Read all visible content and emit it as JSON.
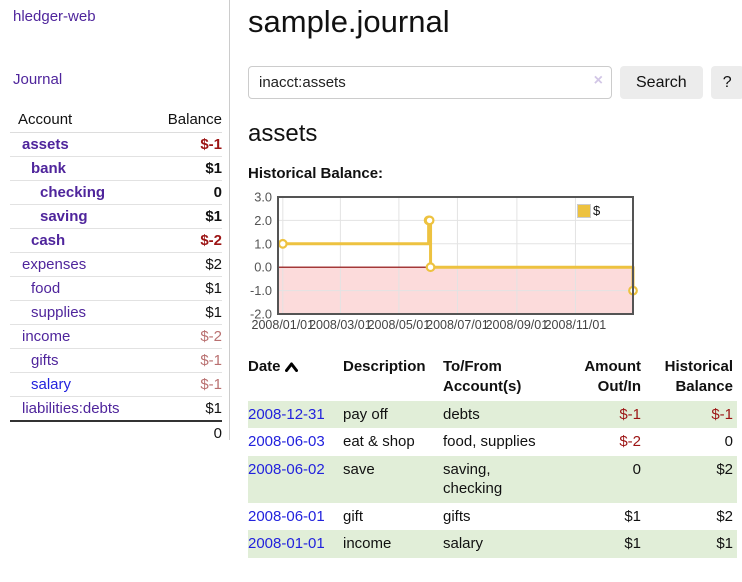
{
  "app": {
    "brand": "hledger-web",
    "nav_journal": "Journal"
  },
  "sidebar": {
    "headers": {
      "account": "Account",
      "balance": "Balance"
    },
    "accounts": [
      {
        "name": "assets",
        "balance": "$-1"
      },
      {
        "name": "bank",
        "balance": "$1"
      },
      {
        "name": "checking",
        "balance": "0"
      },
      {
        "name": "saving",
        "balance": "$1"
      },
      {
        "name": "cash",
        "balance": "$-2"
      },
      {
        "name": "expenses",
        "balance": "$2"
      },
      {
        "name": "food",
        "balance": "$1"
      },
      {
        "name": "supplies",
        "balance": "$1"
      },
      {
        "name": "income",
        "balance": "$-2"
      },
      {
        "name": "gifts",
        "balance": "$-1"
      },
      {
        "name": "salary",
        "balance": "$-1"
      },
      {
        "name": "liabilities:debts",
        "balance": "$1"
      }
    ],
    "total": "0"
  },
  "header": {
    "title": "sample.journal"
  },
  "search": {
    "value": "inacct:assets",
    "clear": "×",
    "search_button": "Search",
    "help_button": "?"
  },
  "account_page": {
    "title": "assets",
    "chart_title": "Historical Balance:"
  },
  "chart_data": {
    "type": "line",
    "title": "Historical Balance:",
    "series": [
      {
        "name": "$",
        "color": "#edc240",
        "steps": true,
        "points": [
          [
            "2008-01-01",
            1
          ],
          [
            "2008-06-01",
            2
          ],
          [
            "2008-06-02",
            2
          ],
          [
            "2008-06-03",
            0
          ],
          [
            "2008-12-31",
            -1
          ]
        ]
      }
    ],
    "ylim": [
      -2,
      3
    ],
    "xlim": [
      "2007-12-27",
      "2008-12-31"
    ],
    "yticks": [
      {
        "v": 3,
        "label": "3.0"
      },
      {
        "v": 2,
        "label": "2.0"
      },
      {
        "v": 1,
        "label": "1.0"
      },
      {
        "v": 0,
        "label": "0.0"
      },
      {
        "v": -1,
        "label": "-1.0"
      },
      {
        "v": -2,
        "label": "-2.0"
      }
    ],
    "xticks": [
      {
        "d": "2008-01-01",
        "label": "2008/01/01"
      },
      {
        "d": "2008-03-01",
        "label": "2008/03/01"
      },
      {
        "d": "2008-05-01",
        "label": "2008/05/01"
      },
      {
        "d": "2008-07-01",
        "label": "2008/07/01"
      },
      {
        "d": "2008-09-01",
        "label": "2008/09/01"
      },
      {
        "d": "2008-11-01",
        "label": "2008/11/01"
      }
    ],
    "grid": true,
    "legend_position": "top-right",
    "negative_fill": "#fcdbdb",
    "zero_line_color": "#8b0000"
  },
  "register": {
    "headers": {
      "date": "Date",
      "description": "Description",
      "accounts": "To/From Account(s)",
      "amount": "Amount Out/In",
      "balance": "Historical Balance"
    },
    "rows": [
      {
        "date": "2008-12-31",
        "description": "pay off",
        "accounts": "debts",
        "amount": "$-1",
        "balance": "$-1"
      },
      {
        "date": "2008-06-03",
        "description": "eat & shop",
        "accounts": "food, supplies",
        "amount": "$-2",
        "balance": "0"
      },
      {
        "date": "2008-06-02",
        "description": "save",
        "accounts": "saving, checking",
        "amount": "0",
        "balance": "$2"
      },
      {
        "date": "2008-06-01",
        "description": "gift",
        "accounts": "gifts",
        "amount": "$1",
        "balance": "$2"
      },
      {
        "date": "2008-01-01",
        "description": "income",
        "accounts": "salary",
        "amount": "$1",
        "balance": "$1"
      }
    ]
  },
  "colors": {
    "link_purple": "#4f259c",
    "link_blue": "#2222dd",
    "negative_strong": "#9c1414",
    "negative_muted": "#b97070",
    "row_green": "#e1eed8",
    "series_yellow": "#edc240"
  }
}
